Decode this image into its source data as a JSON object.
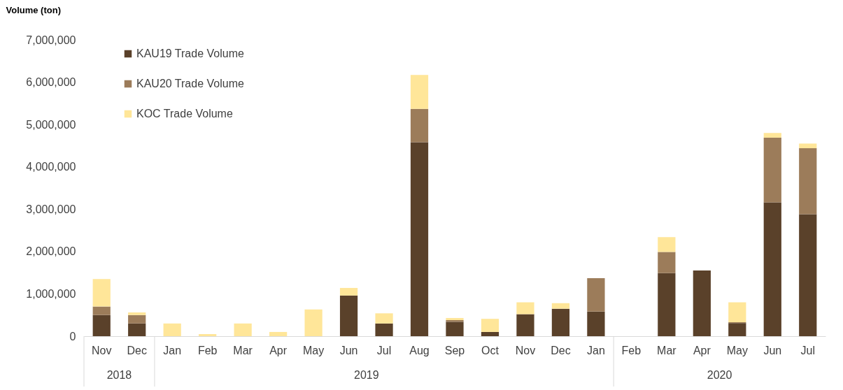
{
  "chart_data": {
    "type": "bar",
    "stacked": true,
    "ylabel": "Volume (ton)",
    "categories": [
      "Nov",
      "Dec",
      "Jan",
      "Feb",
      "Mar",
      "Apr",
      "May",
      "Jun",
      "Jul",
      "Aug",
      "Sep",
      "Oct",
      "Nov",
      "Dec",
      "Jan",
      "Feb",
      "Mar",
      "Apr",
      "May",
      "Jun",
      "Jul"
    ],
    "series": [
      {
        "name": "KAU19 Trade Volume",
        "color": "#5a412a",
        "values": [
          500000,
          300000,
          0,
          0,
          0,
          0,
          0,
          960000,
          300000,
          4580000,
          340000,
          100000,
          520000,
          650000,
          580000,
          0,
          1490000,
          1550000,
          310000,
          3160000,
          2880000
        ]
      },
      {
        "name": "KAU20 Trade Volume",
        "color": "#9c7c5a",
        "values": [
          200000,
          200000,
          0,
          0,
          0,
          0,
          0,
          0,
          0,
          790000,
          40000,
          0,
          0,
          0,
          790000,
          0,
          500000,
          0,
          20000,
          1530000,
          1560000
        ]
      },
      {
        "name": "KOC Trade Volume",
        "color": "#ffe699",
        "values": [
          650000,
          60000,
          300000,
          50000,
          300000,
          100000,
          630000,
          180000,
          240000,
          800000,
          50000,
          310000,
          280000,
          130000,
          0,
          0,
          350000,
          0,
          470000,
          110000,
          110000
        ]
      }
    ],
    "ylim": [
      0,
      7000000
    ],
    "yticks": [
      0,
      {
        "value": 1000000,
        "label": "1,000,000"
      },
      {
        "value": 2000000,
        "label": "2,000,000"
      },
      {
        "value": 3000000,
        "label": "3,000,000"
      },
      {
        "value": 4000000,
        "label": "4,000,000"
      },
      {
        "value": 5000000,
        "label": "5,000,000"
      },
      {
        "value": 6000000,
        "label": "6,000,000"
      },
      {
        "value": 7000000,
        "label": "7,000,000"
      }
    ],
    "annotations": [
      "2018",
      "2019",
      "2020"
    ],
    "legend": "top left",
    "grid": false
  }
}
